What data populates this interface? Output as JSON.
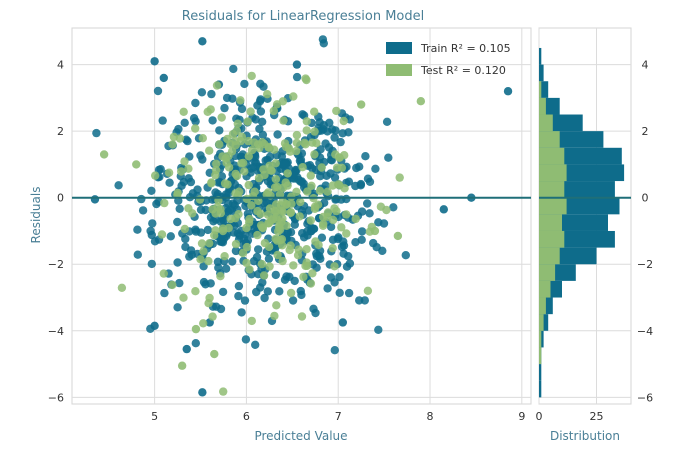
{
  "chart_data": {
    "type": "scatter",
    "title": "Residuals for LinearRegression Model",
    "xlabel": "Predicted Value",
    "ylabel": "Residuals",
    "xlim": [
      4.1,
      9.1
    ],
    "ylim": [
      -6.2,
      5.1
    ],
    "xticks": [
      "5",
      "6",
      "7",
      "8",
      "9"
    ],
    "xtick_values": [
      5,
      6,
      7,
      8,
      9
    ],
    "yticks": [
      "4",
      "2",
      "0",
      "−2",
      "−4",
      "−6"
    ],
    "ytick_values": [
      4,
      2,
      0,
      -2,
      -4,
      -6
    ],
    "zero_line": 0,
    "grid": true,
    "legend_placement": "top-right",
    "legend": [
      {
        "label": "Train R² = 0.105",
        "color": "#0e6c8b"
      },
      {
        "label": "Test R² = 0.120",
        "color": "#8fbc73"
      }
    ],
    "series_styles": [
      {
        "color": "#0e6c8b"
      },
      {
        "color": "#8fbc73"
      }
    ],
    "scatter_approx_points": 900,
    "train_highlights": [
      [
        5.52,
        4.7
      ],
      [
        5.0,
        4.1
      ],
      [
        5.1,
        3.6
      ],
      [
        6.55,
        4.0
      ],
      [
        5.7,
        3.4
      ],
      [
        8.85,
        3.2
      ],
      [
        8.45,
        0.0
      ],
      [
        8.15,
        -0.35
      ],
      [
        4.35,
        -0.05
      ],
      [
        7.05,
        -3.75
      ],
      [
        5.52,
        -5.85
      ],
      [
        5.0,
        -3.85
      ],
      [
        5.6,
        -3.75
      ],
      [
        5.35,
        -4.55
      ]
    ],
    "test_highlights": [
      [
        5.3,
        -5.05
      ],
      [
        5.65,
        -4.7
      ],
      [
        4.45,
        1.3
      ],
      [
        4.8,
        1.0
      ],
      [
        7.25,
        2.8
      ],
      [
        7.9,
        2.9
      ],
      [
        7.4,
        -1.0
      ],
      [
        7.65,
        -1.15
      ],
      [
        5.45,
        -3.95
      ]
    ],
    "histogram": {
      "xlabel": "Distribution",
      "xticks": [
        "0",
        "25"
      ],
      "xtick_values": [
        0,
        25
      ],
      "xlim": [
        0,
        40
      ],
      "bin_centers": [
        -5.75,
        -5.25,
        -4.75,
        -4.25,
        -3.75,
        -3.25,
        -2.75,
        -2.25,
        -1.75,
        -1.25,
        -0.75,
        -0.25,
        0.25,
        0.75,
        1.25,
        1.75,
        2.25,
        2.75,
        3.25,
        3.75,
        4.25
      ],
      "train_counts": [
        1,
        1,
        1,
        2,
        4,
        6,
        10,
        16,
        25,
        33,
        30,
        35,
        33,
        37,
        36,
        28,
        19,
        9,
        4,
        2,
        1
      ],
      "test_counts": [
        0,
        0,
        1,
        1,
        2,
        3,
        5,
        7,
        9,
        11,
        10,
        12,
        11,
        12,
        11,
        9,
        6,
        3,
        1,
        0,
        0
      ]
    }
  }
}
